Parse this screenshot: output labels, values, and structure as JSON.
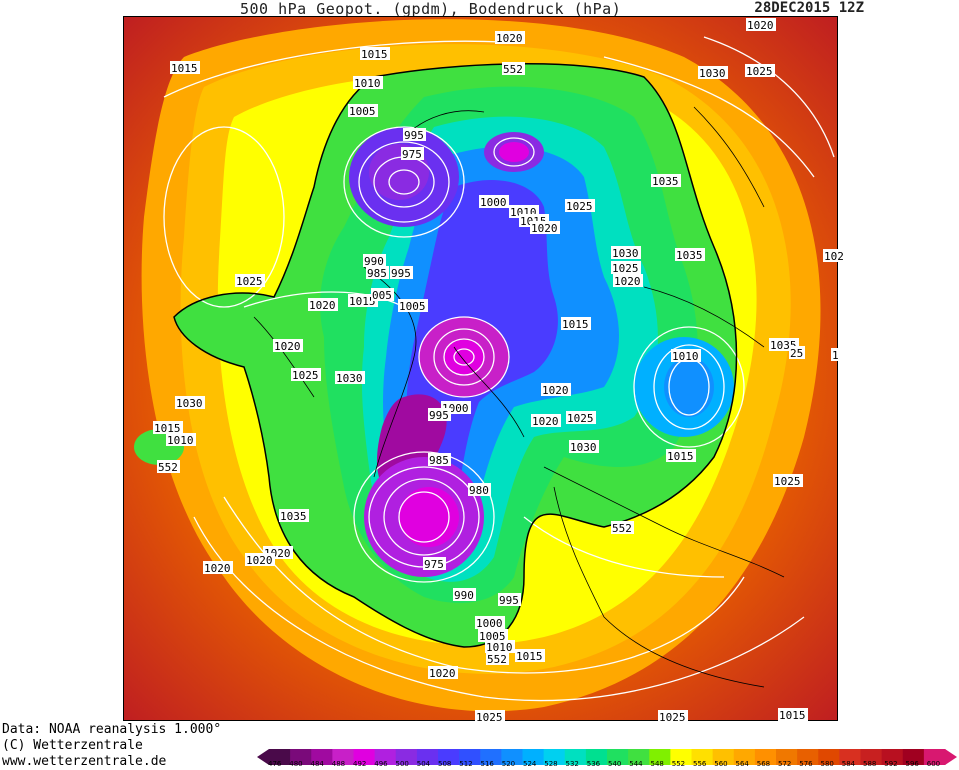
{
  "header": {
    "title": "500 hPa Geopot. (gpdm), Bodendruck (hPa)",
    "date": "28DEC2015 12Z"
  },
  "footer": {
    "line1": "Data: NOAA reanalysis 1.000°",
    "line2": "(C) Wetterzentrale",
    "line3": "www.wetterzentrale.de"
  },
  "legend": {
    "values": [
      "476",
      "480",
      "484",
      "488",
      "492",
      "496",
      "500",
      "504",
      "508",
      "512",
      "516",
      "520",
      "524",
      "528",
      "532",
      "536",
      "540",
      "544",
      "548",
      "552",
      "556",
      "560",
      "564",
      "568",
      "572",
      "576",
      "580",
      "584",
      "588",
      "592",
      "596",
      "600"
    ],
    "colors": [
      "#4a0a4a",
      "#7a0a7a",
      "#a00aa0",
      "#c820c8",
      "#e000e0",
      "#b020e0",
      "#8a2be2",
      "#6a30f0",
      "#4a3cff",
      "#3050ff",
      "#2070ff",
      "#1090ff",
      "#00b0ff",
      "#00d0f0",
      "#00e0c0",
      "#00e090",
      "#20e060",
      "#40e040",
      "#80f000",
      "#ffff00",
      "#ffe000",
      "#ffc000",
      "#ffa800",
      "#ff9000",
      "#f07800",
      "#e86000",
      "#e04800",
      "#d83020",
      "#c82020",
      "#b81020",
      "#a00020",
      "#d81870"
    ]
  },
  "pressure_labels": [
    {
      "t": "1015"
    },
    {
      "t": "1015"
    },
    {
      "t": "1020"
    },
    {
      "t": "1030"
    },
    {
      "t": "1025"
    },
    {
      "t": "1020"
    },
    {
      "t": "552"
    },
    {
      "t": "1010"
    },
    {
      "t": "1005"
    },
    {
      "t": "995"
    },
    {
      "t": "975"
    },
    {
      "t": "1035"
    },
    {
      "t": "1000"
    },
    {
      "t": "1010"
    },
    {
      "t": "1015"
    },
    {
      "t": "1025"
    },
    {
      "t": "1020"
    },
    {
      "t": "1030"
    },
    {
      "t": "1035"
    },
    {
      "t": "1025"
    },
    {
      "t": "1020"
    },
    {
      "t": "102"
    },
    {
      "t": "1025"
    },
    {
      "t": "990"
    },
    {
      "t": "985"
    },
    {
      "t": "995"
    },
    {
      "t": "1020"
    },
    {
      "t": "1015"
    },
    {
      "t": "005"
    },
    {
      "t": "1005"
    },
    {
      "t": "1015"
    },
    {
      "t": "1020"
    },
    {
      "t": "1010"
    },
    {
      "t": "1035"
    },
    {
      "t": "25"
    },
    {
      "t": "1"
    },
    {
      "t": "1025"
    },
    {
      "t": "1030"
    },
    {
      "t": "1020"
    },
    {
      "t": "1000"
    },
    {
      "t": "995"
    },
    {
      "t": "1030"
    },
    {
      "t": "1020"
    },
    {
      "t": "1015"
    },
    {
      "t": "1010"
    },
    {
      "t": "552"
    },
    {
      "t": "1025"
    },
    {
      "t": "1030"
    },
    {
      "t": "1015"
    },
    {
      "t": "985"
    },
    {
      "t": "980"
    },
    {
      "t": "1035"
    },
    {
      "t": "1025"
    },
    {
      "t": "1020"
    },
    {
      "t": "1020"
    },
    {
      "t": "975"
    },
    {
      "t": "552"
    },
    {
      "t": "990"
    },
    {
      "t": "995"
    },
    {
      "t": "1000"
    },
    {
      "t": "1005"
    },
    {
      "t": "1010"
    },
    {
      "t": "552"
    },
    {
      "t": "1015"
    },
    {
      "t": "1020"
    },
    {
      "t": "1025"
    },
    {
      "t": "1025"
    },
    {
      "t": "1015"
    },
    {
      "t": "1020"
    }
  ]
}
